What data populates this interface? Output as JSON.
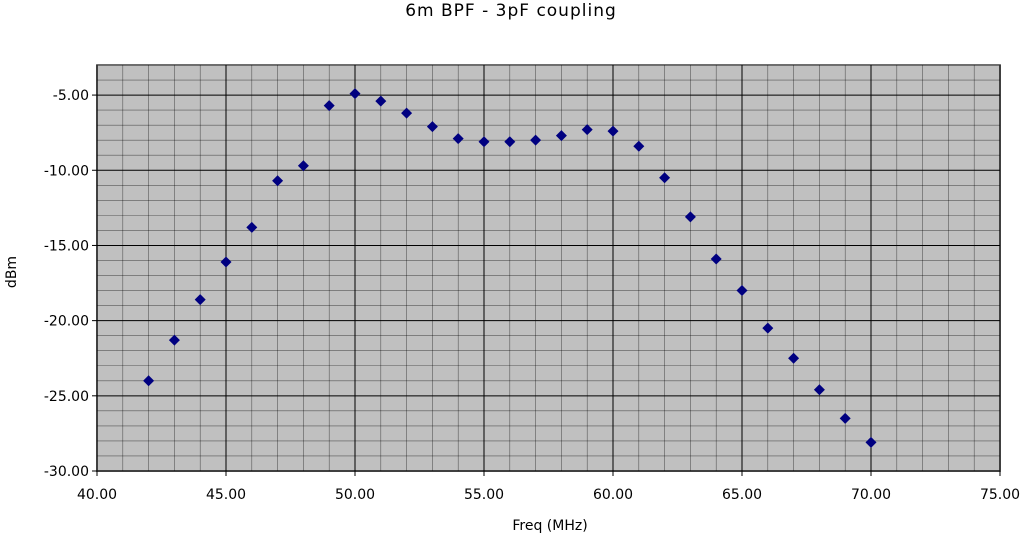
{
  "chart_data": {
    "type": "scatter",
    "title": "6m BPF - 3pF coupling",
    "xlabel": "Freq (MHz)",
    "ylabel": "dBm",
    "xlim": [
      40,
      75
    ],
    "ylim": [
      -30,
      -3
    ],
    "x_ticks": [
      "40.00",
      "45.00",
      "50.00",
      "55.00",
      "60.00",
      "65.00",
      "70.00",
      "75.00"
    ],
    "y_ticks": [
      "-5.00",
      "-10.00",
      "-15.00",
      "-20.00",
      "-25.00",
      "-30.00"
    ],
    "grid": true,
    "marker_color": "#000080",
    "plot_background": "#c0c0c0",
    "series": [
      {
        "marker": "diamond",
        "x": [
          42,
          43,
          44,
          45,
          46,
          47,
          48,
          49,
          50,
          51,
          52,
          53,
          54,
          55,
          56,
          57,
          58,
          59,
          60,
          61,
          62,
          63,
          64,
          65,
          66,
          67,
          68,
          69,
          70
        ],
        "y": [
          -24.0,
          -21.3,
          -18.6,
          -16.1,
          -13.8,
          -10.7,
          -9.7,
          -5.7,
          -4.9,
          -5.4,
          -6.2,
          -7.1,
          -7.9,
          -8.1,
          -8.1,
          -8.0,
          -7.7,
          -7.3,
          -7.4,
          -8.4,
          -10.5,
          -13.1,
          -15.9,
          -18.0,
          -20.5,
          -22.5,
          -24.6,
          -26.5,
          -28.1
        ]
      }
    ]
  }
}
